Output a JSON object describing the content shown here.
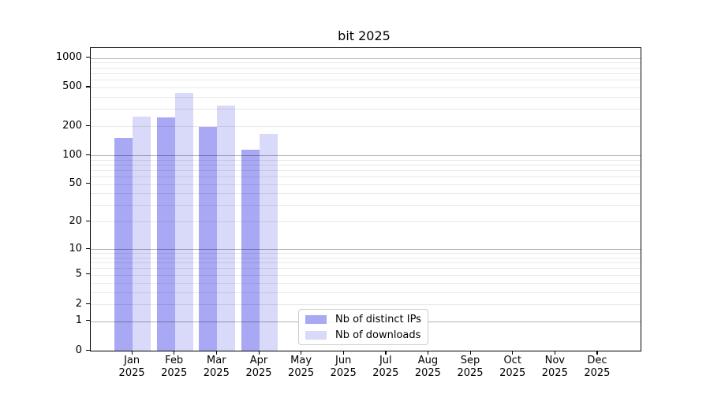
{
  "chart_data": {
    "type": "bar",
    "title": "bit 2025",
    "year_label": "2025",
    "categories": [
      "Jan",
      "Feb",
      "Mar",
      "Apr",
      "May",
      "Jun",
      "Jul",
      "Aug",
      "Sep",
      "Oct",
      "Nov",
      "Dec"
    ],
    "series": [
      {
        "name": "Nb of distinct IPs",
        "color": "#a8a8f4",
        "values": [
          150,
          245,
          196,
          115,
          0,
          0,
          0,
          0,
          0,
          0,
          0,
          0
        ]
      },
      {
        "name": "Nb of downloads",
        "color": "#d9d9f9",
        "values": [
          250,
          440,
          326,
          166,
          0,
          0,
          0,
          0,
          0,
          0,
          0,
          0
        ]
      }
    ],
    "yscale": "log10(1+y)",
    "yticks": [
      0,
      1,
      2,
      5,
      10,
      20,
      50,
      100,
      200,
      500,
      1000
    ],
    "ylim": [
      0,
      1270
    ],
    "grid": "horizontal major+minor",
    "legend_position": "bottom-center"
  }
}
